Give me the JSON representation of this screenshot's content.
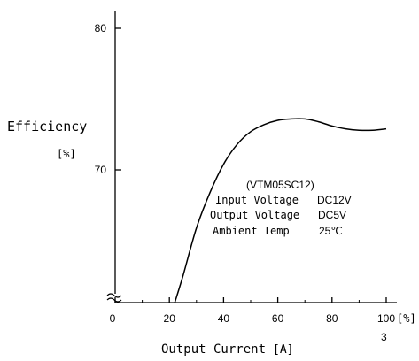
{
  "chart_data": {
    "type": "line",
    "ylabel": "Efficiency",
    "yunit": "[%]",
    "xlabel": "Output Current",
    "xunit": "[A]",
    "xlim": [
      0,
      100
    ],
    "ylim": [
      60,
      80
    ],
    "y_axis_break": true,
    "grid": false,
    "x_ticks": [
      {
        "value": 0,
        "label": "0"
      },
      {
        "value": 20,
        "label": "20"
      },
      {
        "value": 40,
        "label": "40"
      },
      {
        "value": 60,
        "label": "60"
      },
      {
        "value": 80,
        "label": "80"
      },
      {
        "value": 100,
        "label": "100"
      }
    ],
    "x_unit_tick": "[%]",
    "x_sub_label": "3",
    "y_ticks": [
      {
        "value": 80,
        "label": "80"
      },
      {
        "value": 70,
        "label": "70"
      }
    ],
    "series": [
      {
        "x": [
          22,
          25,
          30,
          35,
          40,
          45,
          50,
          55,
          60,
          65,
          70,
          75,
          80,
          85,
          90,
          95,
          100
        ],
        "y": [
          60.0,
          62.5,
          65.9,
          68.4,
          70.4,
          71.8,
          72.7,
          73.2,
          73.5,
          73.6,
          73.6,
          73.4,
          73.1,
          72.9,
          72.8,
          72.8,
          72.9
        ]
      }
    ],
    "annotation": [
      {
        "label": "(VTM05SC12)",
        "value": ""
      },
      {
        "label": "Input Voltage",
        "value": "DC12V"
      },
      {
        "label": "Output Voltage",
        "value": "DC5V"
      },
      {
        "label": "Ambient Temp",
        "value": "25℃"
      }
    ]
  }
}
